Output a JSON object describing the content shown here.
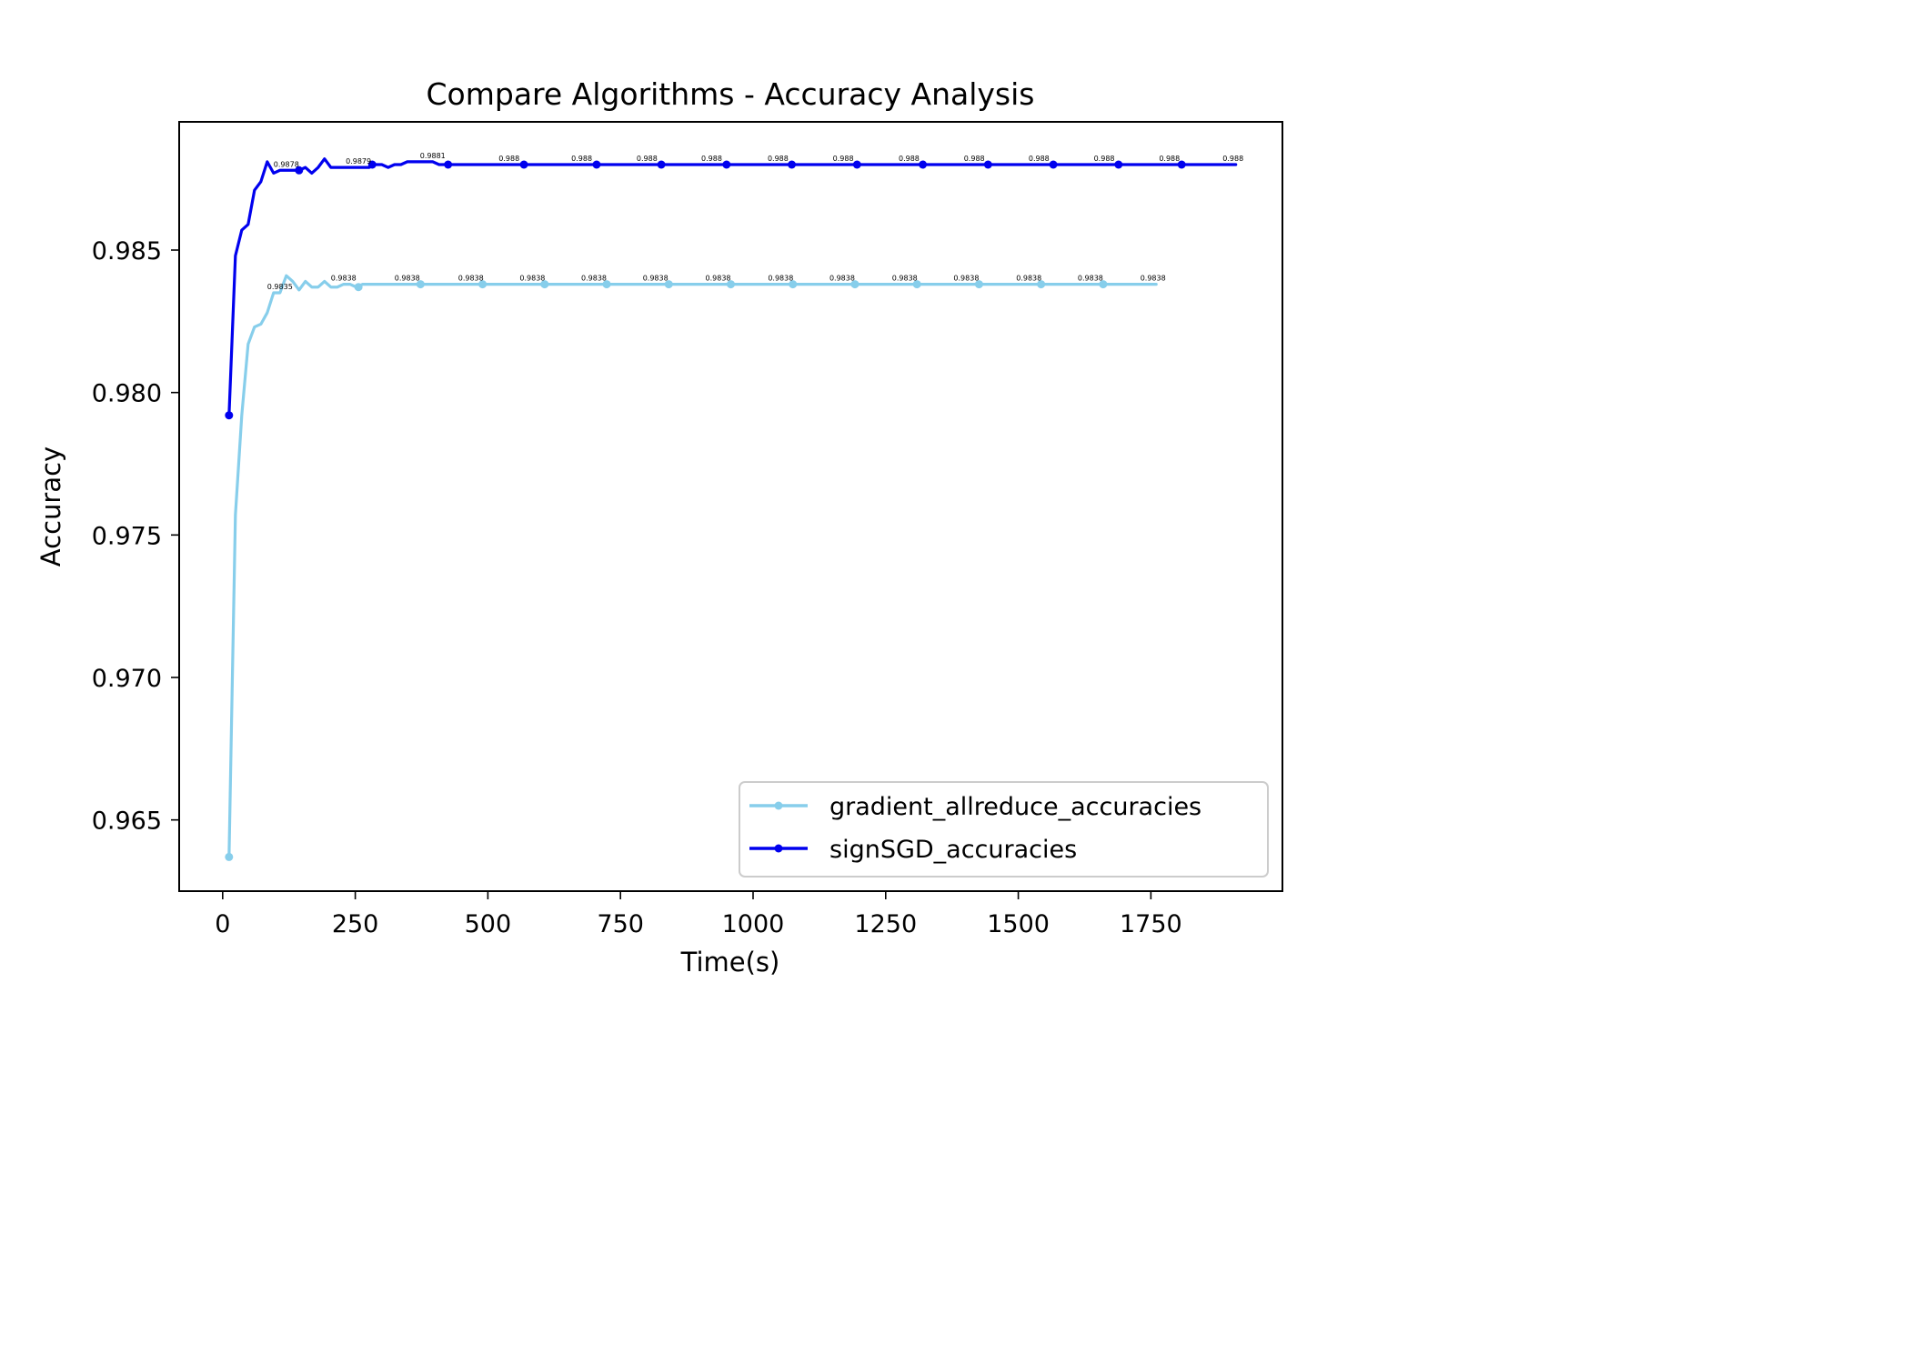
{
  "chart_data": {
    "type": "line",
    "title": "Compare Algorithms - Accuracy Analysis",
    "xlabel": "Time(s)",
    "ylabel": "Accuracy",
    "xlim": [
      -82,
      1998
    ],
    "ylim": [
      0.9625,
      0.9895
    ],
    "xticks": [
      0,
      250,
      500,
      750,
      1000,
      1250,
      1500,
      1750
    ],
    "xtick_labels": [
      "0",
      "250",
      "500",
      "750",
      "1000",
      "1250",
      "1500",
      "1750"
    ],
    "yticks": [
      0.965,
      0.97,
      0.975,
      0.98,
      0.985
    ],
    "ytick_labels": [
      "0.965",
      "0.970",
      "0.975",
      "0.980",
      "0.985"
    ],
    "grid": false,
    "legend_position": "lower-right",
    "series": [
      {
        "name": "gradient_allreduce_accuracies",
        "color": "#87ceeb",
        "x": [
          12,
          24,
          36,
          48,
          60,
          72,
          84,
          96,
          108,
          120,
          132,
          144,
          156,
          168,
          180,
          192,
          204,
          216,
          228,
          240,
          252,
          264,
          276,
          288,
          300,
          312,
          324,
          336,
          348,
          360,
          373,
          490,
          607,
          724,
          841,
          958,
          1075,
          1192,
          1309,
          1426,
          1543,
          1660,
          1760
        ],
        "y": [
          0.9637,
          0.9757,
          0.9792,
          0.9817,
          0.9823,
          0.9824,
          0.9828,
          0.9835,
          0.9835,
          0.9841,
          0.9839,
          0.9836,
          0.9839,
          0.9837,
          0.9837,
          0.9839,
          0.9837,
          0.9837,
          0.9838,
          0.9838,
          0.9837,
          0.9838,
          0.9838,
          0.9838,
          0.9838,
          0.9838,
          0.9838,
          0.9838,
          0.9838,
          0.9838,
          0.9838,
          0.9838,
          0.9838,
          0.9838,
          0.9838,
          0.9838,
          0.9838,
          0.9838,
          0.9838,
          0.9838,
          0.9838,
          0.9838,
          0.9838
        ],
        "markers": [
          {
            "x": 12,
            "y": 0.9637
          },
          {
            "x": 256,
            "y": 0.9837
          },
          {
            "x": 373,
            "y": 0.9838
          },
          {
            "x": 490,
            "y": 0.9838
          },
          {
            "x": 607,
            "y": 0.9838
          },
          {
            "x": 724,
            "y": 0.9838
          },
          {
            "x": 841,
            "y": 0.9838
          },
          {
            "x": 958,
            "y": 0.9838
          },
          {
            "x": 1075,
            "y": 0.9838
          },
          {
            "x": 1192,
            "y": 0.9838
          },
          {
            "x": 1309,
            "y": 0.9838
          },
          {
            "x": 1426,
            "y": 0.9838
          },
          {
            "x": 1543,
            "y": 0.9838
          },
          {
            "x": 1660,
            "y": 0.9838
          }
        ],
        "annotations": [
          {
            "x": 108,
            "y": 0.9835,
            "text": "0.9835"
          },
          {
            "x": 228,
            "y": 0.9838,
            "text": "0.9838"
          },
          {
            "x": 348,
            "y": 0.9838,
            "text": "0.9838"
          },
          {
            "x": 468,
            "y": 0.9838,
            "text": "0.9838"
          },
          {
            "x": 584,
            "y": 0.9838,
            "text": "0.9838"
          },
          {
            "x": 700,
            "y": 0.9838,
            "text": "0.9838"
          },
          {
            "x": 816,
            "y": 0.9838,
            "text": "0.9838"
          },
          {
            "x": 934,
            "y": 0.9838,
            "text": "0.9838"
          },
          {
            "x": 1052,
            "y": 0.9838,
            "text": "0.9838"
          },
          {
            "x": 1168,
            "y": 0.9838,
            "text": "0.9838"
          },
          {
            "x": 1286,
            "y": 0.9838,
            "text": "0.9838"
          },
          {
            "x": 1402,
            "y": 0.9838,
            "text": "0.9838"
          },
          {
            "x": 1520,
            "y": 0.9838,
            "text": "0.9838"
          },
          {
            "x": 1636,
            "y": 0.9838,
            "text": "0.9838"
          },
          {
            "x": 1754,
            "y": 0.9838,
            "text": "0.9838"
          }
        ]
      },
      {
        "name": "signSGD_accuracies",
        "color": "#0000ee",
        "x": [
          12,
          24,
          36,
          48,
          60,
          72,
          84,
          96,
          108,
          120,
          132,
          144,
          156,
          168,
          180,
          192,
          204,
          216,
          228,
          240,
          252,
          264,
          276,
          288,
          300,
          312,
          324,
          336,
          348,
          360,
          372,
          384,
          396,
          408,
          425,
          568,
          705,
          827,
          950,
          1073,
          1196,
          1320,
          1443,
          1566,
          1689,
          1808,
          1910
        ],
        "y": [
          0.9792,
          0.9848,
          0.9857,
          0.9859,
          0.9871,
          0.9874,
          0.9881,
          0.9877,
          0.9878,
          0.9878,
          0.9878,
          0.9878,
          0.9879,
          0.9877,
          0.9879,
          0.9882,
          0.9879,
          0.9879,
          0.9879,
          0.9879,
          0.9879,
          0.9879,
          0.9879,
          0.988,
          0.988,
          0.9879,
          0.988,
          0.988,
          0.9881,
          0.9881,
          0.9881,
          0.9881,
          0.9881,
          0.988,
          0.988,
          0.988,
          0.988,
          0.988,
          0.988,
          0.988,
          0.988,
          0.988,
          0.988,
          0.988,
          0.988,
          0.988,
          0.988
        ],
        "markers": [
          {
            "x": 12,
            "y": 0.9792
          },
          {
            "x": 144,
            "y": 0.9878
          },
          {
            "x": 282,
            "y": 0.988
          },
          {
            "x": 425,
            "y": 0.988
          },
          {
            "x": 568,
            "y": 0.988
          },
          {
            "x": 705,
            "y": 0.988
          },
          {
            "x": 827,
            "y": 0.988
          },
          {
            "x": 950,
            "y": 0.988
          },
          {
            "x": 1073,
            "y": 0.988
          },
          {
            "x": 1196,
            "y": 0.988
          },
          {
            "x": 1320,
            "y": 0.988
          },
          {
            "x": 1443,
            "y": 0.988
          },
          {
            "x": 1566,
            "y": 0.988
          },
          {
            "x": 1689,
            "y": 0.988
          },
          {
            "x": 1808,
            "y": 0.988
          }
        ],
        "annotations": [
          {
            "x": 120,
            "y": 0.9878,
            "text": "0.9878"
          },
          {
            "x": 256,
            "y": 0.9879,
            "text": "0.9879"
          },
          {
            "x": 396,
            "y": 0.9881,
            "text": "0.9881"
          },
          {
            "x": 540,
            "y": 0.988,
            "text": "0.988"
          },
          {
            "x": 677,
            "y": 0.988,
            "text": "0.988"
          },
          {
            "x": 800,
            "y": 0.988,
            "text": "0.988"
          },
          {
            "x": 922,
            "y": 0.988,
            "text": "0.988"
          },
          {
            "x": 1047,
            "y": 0.988,
            "text": "0.988"
          },
          {
            "x": 1170,
            "y": 0.988,
            "text": "0.988"
          },
          {
            "x": 1294,
            "y": 0.988,
            "text": "0.988"
          },
          {
            "x": 1417,
            "y": 0.988,
            "text": "0.988"
          },
          {
            "x": 1539,
            "y": 0.988,
            "text": "0.988"
          },
          {
            "x": 1662,
            "y": 0.988,
            "text": "0.988"
          },
          {
            "x": 1785,
            "y": 0.988,
            "text": "0.988"
          },
          {
            "x": 1905,
            "y": 0.988,
            "text": "0.988"
          }
        ]
      }
    ]
  }
}
